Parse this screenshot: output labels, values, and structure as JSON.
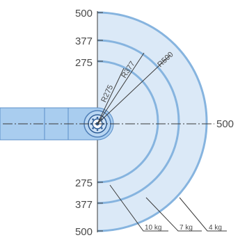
{
  "diagram": {
    "scale_labels_top": [
      "500",
      "377",
      "275"
    ],
    "scale_labels_bottom": [
      "275",
      "377",
      "500"
    ],
    "axis_label_right": "500",
    "radius_labels": [
      "R275",
      "R377",
      "R500"
    ],
    "weight_labels": [
      "10 kg",
      "7 kg",
      "4 kg"
    ],
    "colors": {
      "zone_fill": "#dbe9f7",
      "arc_stroke": "#86b4df",
      "arm_fill": "#a9cdef",
      "arm_stroke": "#5b8fc8",
      "line": "#3a3a3a"
    }
  }
}
